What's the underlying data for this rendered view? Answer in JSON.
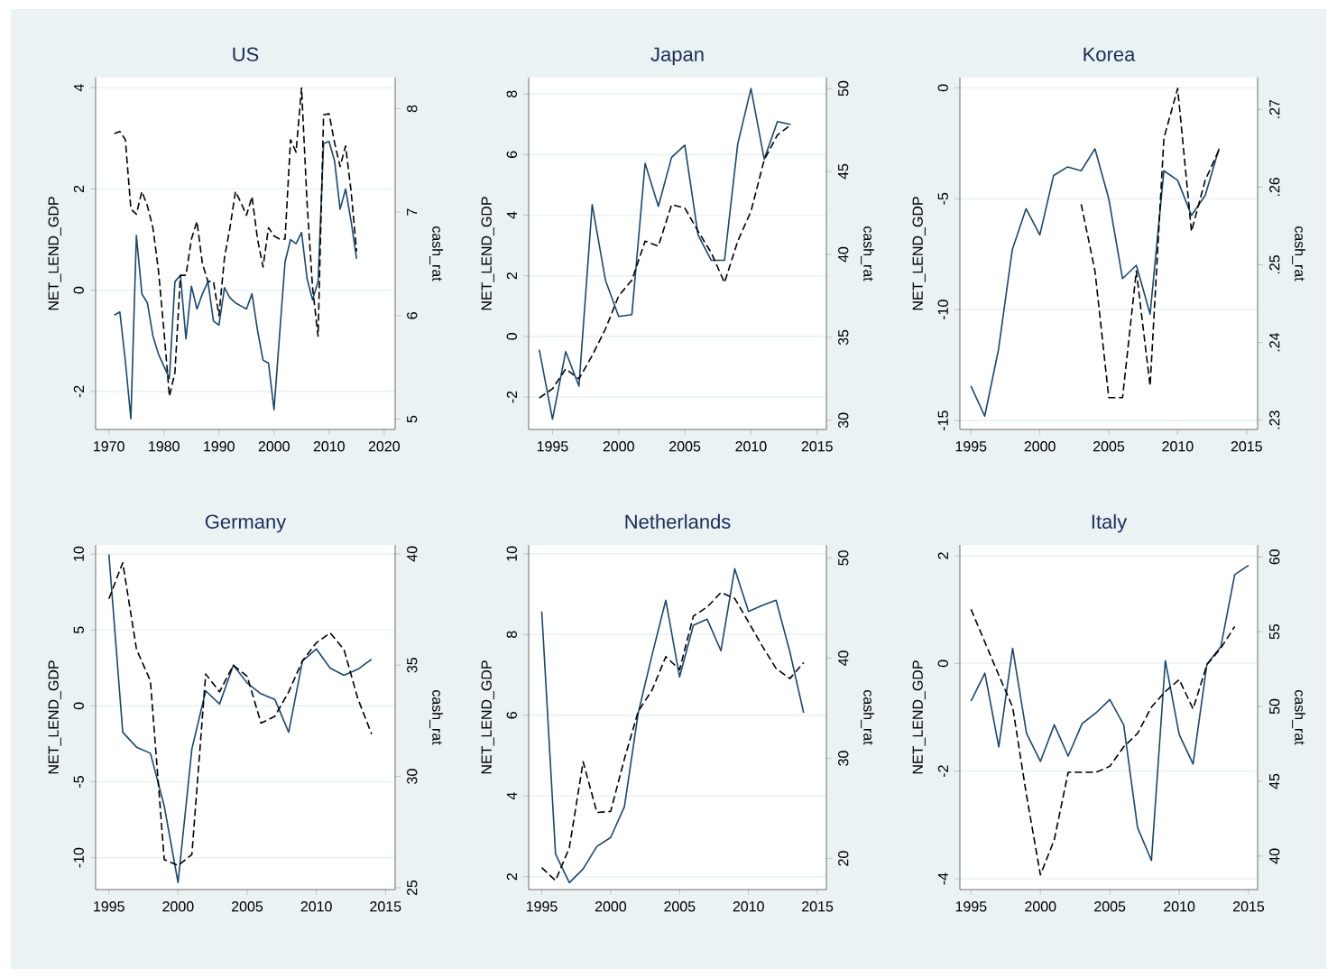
{
  "chart_data": [
    {
      "type": "line",
      "title": "US",
      "ylabel": "NET_LEND_GDP",
      "y2label": "cash_rat",
      "x": [
        1971,
        1972,
        1973,
        1974,
        1975,
        1976,
        1977,
        1978,
        1979,
        1980,
        1981,
        1982,
        1983,
        1984,
        1985,
        1986,
        1987,
        1988,
        1989,
        1990,
        1991,
        1992,
        1993,
        1994,
        1995,
        1996,
        1997,
        1998,
        1999,
        2000,
        2001,
        2002,
        2003,
        2004,
        2005,
        2006,
        2007,
        2008,
        2009,
        2010,
        2011,
        2012,
        2013,
        2014,
        2015
      ],
      "xlim": [
        1967.6,
        2022
      ],
      "xticks": [
        1970,
        1980,
        1990,
        2000,
        2010,
        2020
      ],
      "ylim": [
        -2.75,
        4.2
      ],
      "yticks": [
        -2,
        0,
        2,
        4
      ],
      "y2lim": [
        4.9,
        8.3
      ],
      "y2ticks": [
        5,
        6,
        7,
        8
      ],
      "grid": "y",
      "series": [
        {
          "color": "#1a476f",
          "values": [
            -0.49,
            -0.43,
            -1.4,
            -2.54,
            1.08,
            -0.07,
            -0.25,
            -0.9,
            -1.26,
            -1.5,
            -1.74,
            0.17,
            0.29,
            -0.96,
            0.08,
            -0.37,
            -0.07,
            0.17,
            -0.61,
            -0.69,
            0.05,
            -0.15,
            -0.25,
            -0.31,
            -0.37,
            -0.07,
            -0.79,
            -1.38,
            -1.44,
            -2.36,
            -0.9,
            0.56,
            1.0,
            0.92,
            1.14,
            0.23,
            -0.19,
            0.17,
            2.9,
            2.94,
            2.55,
            1.6,
            2.0,
            1.36,
            0.62
          ]
        },
        {
          "color": "#000000",
          "axis": "y2",
          "line_style": "dashed",
          "values": [
            7.76,
            7.78,
            7.7,
            7.03,
            6.98,
            7.2,
            7.06,
            6.85,
            6.44,
            5.86,
            5.22,
            5.45,
            6.39,
            6.39,
            6.74,
            6.91,
            6.5,
            6.33,
            6.33,
            6.0,
            6.56,
            6.85,
            7.2,
            7.09,
            6.97,
            7.15,
            6.74,
            6.47,
            6.85,
            6.77,
            6.74,
            6.74,
            7.7,
            7.58,
            8.2,
            7.09,
            6.27,
            5.8,
            7.94,
            7.95,
            7.67,
            7.44,
            7.64,
            7.2,
            6.62
          ]
        }
      ]
    },
    {
      "type": "line",
      "title": "Japan",
      "ylabel": "NET_LEND_GDP",
      "y2label": "cash_rat",
      "x": [
        1994,
        1995,
        1996,
        1997,
        1998,
        1999,
        2000,
        2001,
        2002,
        2003,
        2004,
        2005,
        2006,
        2007,
        2008,
        2009,
        2010,
        2011,
        2012,
        2013
      ],
      "xlim": [
        1993.2,
        2015.7
      ],
      "xticks": [
        1995,
        2000,
        2005,
        2010,
        2015
      ],
      "ylim": [
        -3.07,
        8.54
      ],
      "yticks": [
        -2,
        0,
        2,
        4,
        6,
        8
      ],
      "y2lim": [
        29.45,
        50.66
      ],
      "y2ticks": [
        30,
        35,
        40,
        45,
        50
      ],
      "grid": "y",
      "series": [
        {
          "color": "#1a476f",
          "values": [
            -0.44,
            -2.73,
            -0.5,
            -1.64,
            4.35,
            1.86,
            0.66,
            0.72,
            5.71,
            4.29,
            5.91,
            6.31,
            3.35,
            2.51,
            2.51,
            6.35,
            8.18,
            5.85,
            7.09,
            6.99
          ]
        },
        {
          "color": "#000000",
          "axis": "y2",
          "line_style": "dashed",
          "values": [
            31.35,
            31.9,
            33.1,
            32.5,
            33.9,
            35.5,
            37.5,
            38.45,
            40.8,
            40.5,
            43.0,
            42.8,
            41.4,
            40.1,
            38.3,
            40.8,
            42.6,
            45.7,
            47.2,
            47.8
          ]
        }
      ]
    },
    {
      "type": "line",
      "title": "Korea",
      "ylabel": "NET_LEND_GDP",
      "y2label": "cash_rat",
      "x": [
        1995,
        1996,
        1997,
        1998,
        1999,
        2000,
        2001,
        2002,
        2003,
        2004,
        2005,
        2006,
        2007,
        2008,
        2009,
        2010,
        2011,
        2012,
        2013
      ],
      "xlim": [
        1994.2,
        2015.8
      ],
      "xticks": [
        1995,
        2000,
        2005,
        2010,
        2015
      ],
      "ylim": [
        -15.4,
        0.46
      ],
      "yticks": [
        -15,
        -10,
        -5,
        0
      ],
      "y2lim": [
        0.2288,
        0.2741
      ],
      "y2ticks": [
        {
          "value": 0.23,
          "label": ".23"
        },
        {
          "value": 0.24,
          "label": ".24"
        },
        {
          "value": 0.25,
          "label": ".25"
        },
        {
          "value": 0.26,
          "label": ".26"
        },
        {
          "value": 0.27,
          "label": ".27"
        }
      ],
      "grid": "y",
      "series": [
        {
          "color": "#1a476f",
          "values": [
            -13.44,
            -14.8,
            -11.8,
            -7.3,
            -5.45,
            -6.63,
            -3.95,
            -3.57,
            -3.74,
            -2.75,
            -5.0,
            -8.6,
            -8.0,
            -10.2,
            -3.74,
            -4.17,
            -5.75,
            -4.85,
            -2.73
          ]
        },
        {
          "color": "#000000",
          "axis": "y2",
          "line_style": "dashed",
          "values": [
            null,
            null,
            null,
            null,
            null,
            null,
            null,
            null,
            0.2578,
            0.2492,
            0.2329,
            0.2329,
            0.2492,
            0.2344,
            0.2663,
            0.2727,
            0.2543,
            0.2609,
            0.2648
          ]
        }
      ]
    },
    {
      "type": "line",
      "title": "Germany",
      "ylabel": "NET_LEND_GDP",
      "y2label": "cash_rat",
      "x": [
        1995,
        1996,
        1997,
        1998,
        1999,
        2000,
        2001,
        2002,
        2003,
        2004,
        2005,
        2006,
        2007,
        2008,
        2009,
        2010,
        2011,
        2012,
        2013,
        2014
      ],
      "xlim": [
        1994.04,
        2015.7
      ],
      "xticks": [
        1995,
        2000,
        2005,
        2010,
        2015
      ],
      "ylim": [
        -12.1,
        10.6
      ],
      "yticks": [
        -10,
        -5,
        0,
        5,
        10
      ],
      "y2lim": [
        24.92,
        40.4
      ],
      "y2ticks": [
        25,
        30,
        35,
        40
      ],
      "grid": "y",
      "series": [
        {
          "color": "#1a476f",
          "values": [
            9.98,
            -1.74,
            -2.72,
            -3.12,
            -6.59,
            -11.64,
            -2.84,
            0.99,
            0.12,
            2.68,
            1.5,
            0.79,
            0.43,
            -1.74,
            2.96,
            3.75,
            2.49,
            2.01,
            2.41,
            3.08
          ]
        },
        {
          "color": "#000000",
          "axis": "y2",
          "line_style": "dashed",
          "values": [
            37.98,
            39.6,
            35.7,
            34.3,
            26.27,
            26.0,
            26.5,
            34.6,
            33.8,
            35.0,
            34.5,
            32.4,
            32.7,
            33.8,
            35.2,
            36.0,
            36.45,
            35.7,
            33.5,
            31.9
          ]
        }
      ]
    },
    {
      "type": "line",
      "title": "Netherlands",
      "ylabel": "NET_LEND_GDP",
      "y2label": "cash_rat",
      "x": [
        1995,
        1996,
        1997,
        1998,
        1999,
        2000,
        2001,
        2002,
        2003,
        2004,
        2005,
        2006,
        2007,
        2008,
        2009,
        2010,
        2011,
        2012,
        2013,
        2014
      ],
      "xlim": [
        1994.05,
        2015.65
      ],
      "xticks": [
        1995,
        2000,
        2005,
        2010,
        2015
      ],
      "ylim": [
        1.68,
        10.22
      ],
      "yticks": [
        2,
        4,
        6,
        8,
        10
      ],
      "y2lim": [
        16.9,
        51.3
      ],
      "y2ticks": [
        20,
        30,
        40,
        50
      ],
      "grid": "y",
      "series": [
        {
          "color": "#1a476f",
          "values": [
            8.57,
            2.56,
            1.85,
            2.19,
            2.75,
            2.97,
            3.74,
            6.06,
            7.49,
            8.85,
            6.95,
            8.23,
            8.38,
            7.6,
            9.63,
            8.57,
            8.72,
            8.85,
            7.57,
            6.06
          ]
        },
        {
          "color": "#000000",
          "axis": "y2",
          "line_style": "dashed",
          "values": [
            19.1,
            17.8,
            21.07,
            29.66,
            24.6,
            24.7,
            29.96,
            34.7,
            36.8,
            40.15,
            38.85,
            44.2,
            45.1,
            46.55,
            45.96,
            43.6,
            41.2,
            38.97,
            37.96,
            39.56
          ]
        }
      ]
    },
    {
      "type": "line",
      "title": "Italy",
      "ylabel": "NET_LEND_GDP",
      "y2label": "cash_rat",
      "x": [
        1995,
        1996,
        1997,
        1998,
        1999,
        2000,
        2001,
        2002,
        2003,
        2004,
        2005,
        2006,
        2007,
        2008,
        2009,
        2010,
        2011,
        2012,
        2013,
        2014,
        2015
      ],
      "xlim": [
        1994.2,
        2015.65
      ],
      "xticks": [
        1995,
        2000,
        2005,
        2010,
        2015
      ],
      "ylim": [
        -4.2,
        2.2
      ],
      "yticks": [
        -4,
        -2,
        0,
        2
      ],
      "y2lim": [
        37.76,
        60.8
      ],
      "y2ticks": [
        40,
        45,
        50,
        55,
        60
      ],
      "grid": "y",
      "series": [
        {
          "color": "#1a476f",
          "values": [
            -0.7,
            -0.18,
            -1.55,
            0.28,
            -1.3,
            -1.82,
            -1.14,
            -1.72,
            -1.12,
            -0.92,
            -0.67,
            -1.14,
            -3.05,
            -3.66,
            0.05,
            -1.32,
            -1.87,
            -0.01,
            0.31,
            1.65,
            1.82
          ]
        },
        {
          "color": "#000000",
          "axis": "y2",
          "line_style": "dashed",
          "values": [
            56.5,
            54.3,
            52.1,
            49.96,
            44.06,
            38.74,
            41.1,
            45.6,
            45.6,
            45.6,
            46.0,
            47.3,
            48.2,
            49.96,
            51.0,
            51.8,
            49.84,
            52.8,
            53.9,
            55.35,
            null
          ]
        }
      ]
    }
  ]
}
